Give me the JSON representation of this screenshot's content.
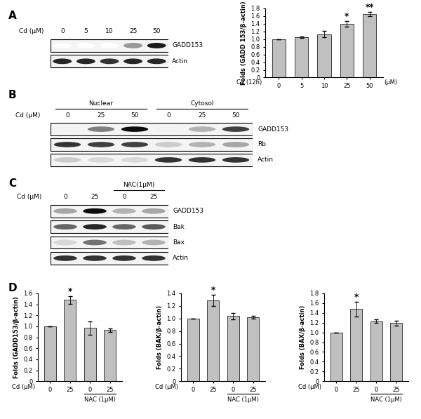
{
  "panel_labels": [
    "A",
    "B",
    "C",
    "D"
  ],
  "blots": [
    {
      "header": "Cd (μM)",
      "lanes": [
        "0",
        "5",
        "10",
        "25",
        "50"
      ],
      "groups": [],
      "rows": [
        {
          "name": "GADD153",
          "intensity": [
            0.0,
            0.0,
            0.0,
            0.4,
            0.9
          ]
        },
        {
          "name": "Actin",
          "intensity": [
            0.85,
            0.85,
            0.8,
            0.85,
            0.85
          ]
        }
      ]
    },
    {
      "header": "Cd (μM)",
      "lanes": [
        "0",
        "25",
        "50",
        "0",
        "25",
        "50"
      ],
      "groups": [
        {
          "label": "Nuclear",
          "first": 0,
          "count": 3
        },
        {
          "label": "Cytosol",
          "first": 3,
          "count": 3
        }
      ],
      "rows": [
        {
          "name": "GADD153",
          "intensity": [
            0.05,
            0.5,
            0.95,
            0.05,
            0.3,
            0.75
          ]
        },
        {
          "name": "Rb",
          "intensity": [
            0.8,
            0.75,
            0.75,
            0.2,
            0.3,
            0.35
          ]
        },
        {
          "name": "Actin",
          "intensity": [
            0.2,
            0.15,
            0.15,
            0.8,
            0.8,
            0.8
          ]
        }
      ]
    },
    {
      "header": "Cd (μM)",
      "lanes": [
        "0",
        "25",
        "0",
        "25"
      ],
      "groups": [
        {
          "label": "NAC(1μM)",
          "first": 2,
          "count": 2
        }
      ],
      "rows": [
        {
          "name": "GADD153",
          "intensity": [
            0.35,
            0.95,
            0.3,
            0.35
          ]
        },
        {
          "name": "Bak",
          "intensity": [
            0.6,
            0.85,
            0.6,
            0.65
          ]
        },
        {
          "name": "Bax",
          "intensity": [
            0.15,
            0.55,
            0.25,
            0.3
          ]
        },
        {
          "name": "Actin",
          "intensity": [
            0.8,
            0.8,
            0.8,
            0.8
          ]
        }
      ]
    }
  ],
  "chart_data": [
    {
      "type": "bar",
      "y_label": "Folds (GADD 153/β-actin)",
      "x_label": "Cd (12h)",
      "x_unit": "(μM)",
      "categories": [
        "0",
        "5",
        "10",
        "25",
        "50"
      ],
      "values": [
        1.0,
        1.05,
        1.13,
        1.4,
        1.65
      ],
      "errors": [
        0.0,
        0.01,
        0.08,
        0.07,
        0.05
      ],
      "annotations": [
        null,
        null,
        null,
        "*",
        "**"
      ],
      "groups": [],
      "color": "#c0c0c0",
      "ylim": [
        0,
        1.8
      ],
      "yticks": [
        0,
        0.2,
        0.4,
        0.6,
        0.8,
        1.0,
        1.2,
        1.4,
        1.6,
        1.8
      ]
    },
    {
      "type": "bar",
      "y_label": "Folds (GADD153/β-actin)",
      "x_label": "Cd (μM)",
      "categories": [
        "0",
        "25",
        "0",
        "25"
      ],
      "values": [
        1.0,
        1.48,
        0.97,
        0.93
      ],
      "errors": [
        0.0,
        0.07,
        0.12,
        0.03
      ],
      "annotations": [
        null,
        "*",
        null,
        null
      ],
      "groups": [
        {
          "label": "NAC (1μM)",
          "first": 2,
          "count": 2
        }
      ],
      "color": "#c0c0c0",
      "ylim": [
        0,
        1.6
      ],
      "yticks": [
        0,
        0.2,
        0.4,
        0.6,
        0.8,
        1.0,
        1.2,
        1.4,
        1.6
      ]
    },
    {
      "type": "bar",
      "y_label": "Folds (BAK/β-actin)",
      "x_label": "Cd (μM)",
      "categories": [
        "0",
        "25",
        "0",
        "25"
      ],
      "values": [
        1.0,
        1.29,
        1.04,
        1.02
      ],
      "errors": [
        0.0,
        0.09,
        0.05,
        0.02
      ],
      "annotations": [
        null,
        "*",
        null,
        null
      ],
      "groups": [
        {
          "label": "NAC (1μM)",
          "first": 2,
          "count": 2
        }
      ],
      "color": "#c0c0c0",
      "ylim": [
        0,
        1.4
      ],
      "yticks": [
        0,
        0.2,
        0.4,
        0.6,
        0.8,
        1.0,
        1.2,
        1.4
      ]
    },
    {
      "type": "bar",
      "y_label": "Folds (BAX/β-actin)",
      "x_label": "Cd (μM)",
      "categories": [
        "0",
        "25",
        "0",
        "25"
      ],
      "values": [
        1.0,
        1.48,
        1.23,
        1.19
      ],
      "errors": [
        0.0,
        0.15,
        0.04,
        0.05
      ],
      "annotations": [
        null,
        "*",
        null,
        null
      ],
      "groups": [
        {
          "label": "NAC (1μM)",
          "first": 2,
          "count": 2
        }
      ],
      "color": "#c0c0c0",
      "ylim": [
        0,
        1.8
      ],
      "yticks": [
        0,
        0.2,
        0.4,
        0.6,
        0.8,
        1.0,
        1.2,
        1.4,
        1.6,
        1.8
      ]
    }
  ]
}
